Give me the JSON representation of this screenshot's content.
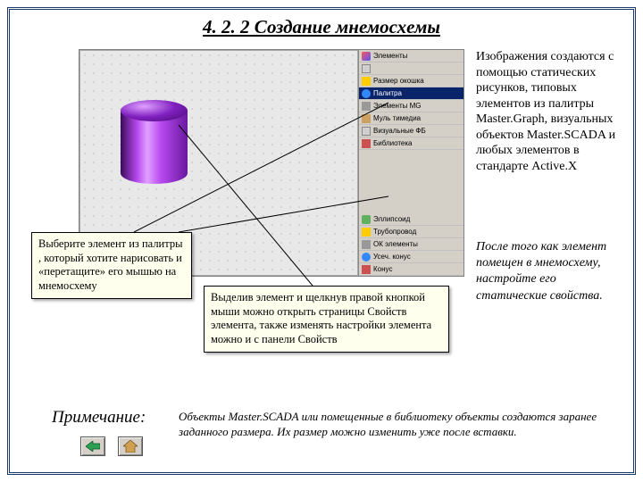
{
  "title": "4. 2. 2 Создание мнемосхемы",
  "right_text_1": "Изображения создаются с помощью статических рисунков, типовых элементов из палитры Master.Graph, визуальных объектов Master.SCADA и любых элементов в стандарте Active.X",
  "right_text_2": "После того как элемент помещен в мнемосхему, настройте его статические свойства.",
  "callout1": "Выберите элемент из палитры , который хотите нарисовать и «перетащите» его мышью на мнемосхему",
  "callout2": "Выделив элемент и щелкнув правой кнопкой мыши можно открыть страницы Свойств элемента, также изменять настройки элемента можно и с панели Свойств",
  "note_label": "Примечание:",
  "note_body": "Объекты Master.SCADA или помещенные в библиотеку объекты создаются заранее заданного размера. Их размер можно изменить уже после вставки.",
  "palette": {
    "rows": [
      {
        "label": "Элементы",
        "ico": "ico-a",
        "sel": false
      },
      {
        "label": "",
        "ico": "ico-h",
        "sel": false
      },
      {
        "label": "Размер окошка",
        "ico": "ico-b",
        "sel": false
      },
      {
        "label": "Палитра",
        "ico": "ico-c",
        "sel": true
      },
      {
        "label": "Элементы MG",
        "ico": "ico-d",
        "sel": false
      },
      {
        "label": "Муль тимедиа",
        "ico": "ico-g",
        "sel": false
      },
      {
        "label": "Визуальные ФБ",
        "ico": "ico-h",
        "sel": false
      },
      {
        "label": "Библиотека",
        "ico": "ico-e",
        "sel": false
      }
    ],
    "rows2": [
      {
        "label": "Эллипсоид",
        "ico": "ico-f"
      },
      {
        "label": "Трубопровод",
        "ico": "ico-b"
      },
      {
        "label": "ОК элементы",
        "ico": "ico-d"
      },
      {
        "label": "Усеч. конус",
        "ico": "ico-c"
      },
      {
        "label": "Конус",
        "ico": "ico-e"
      }
    ]
  },
  "nav": {
    "back": "back-arrow",
    "home": "home-icon"
  },
  "colors": {
    "frame": "#1a3a6e",
    "callout_bg": "#ffffee",
    "palette_bg": "#d4d0c8",
    "palette_sel": "#0a246a"
  }
}
